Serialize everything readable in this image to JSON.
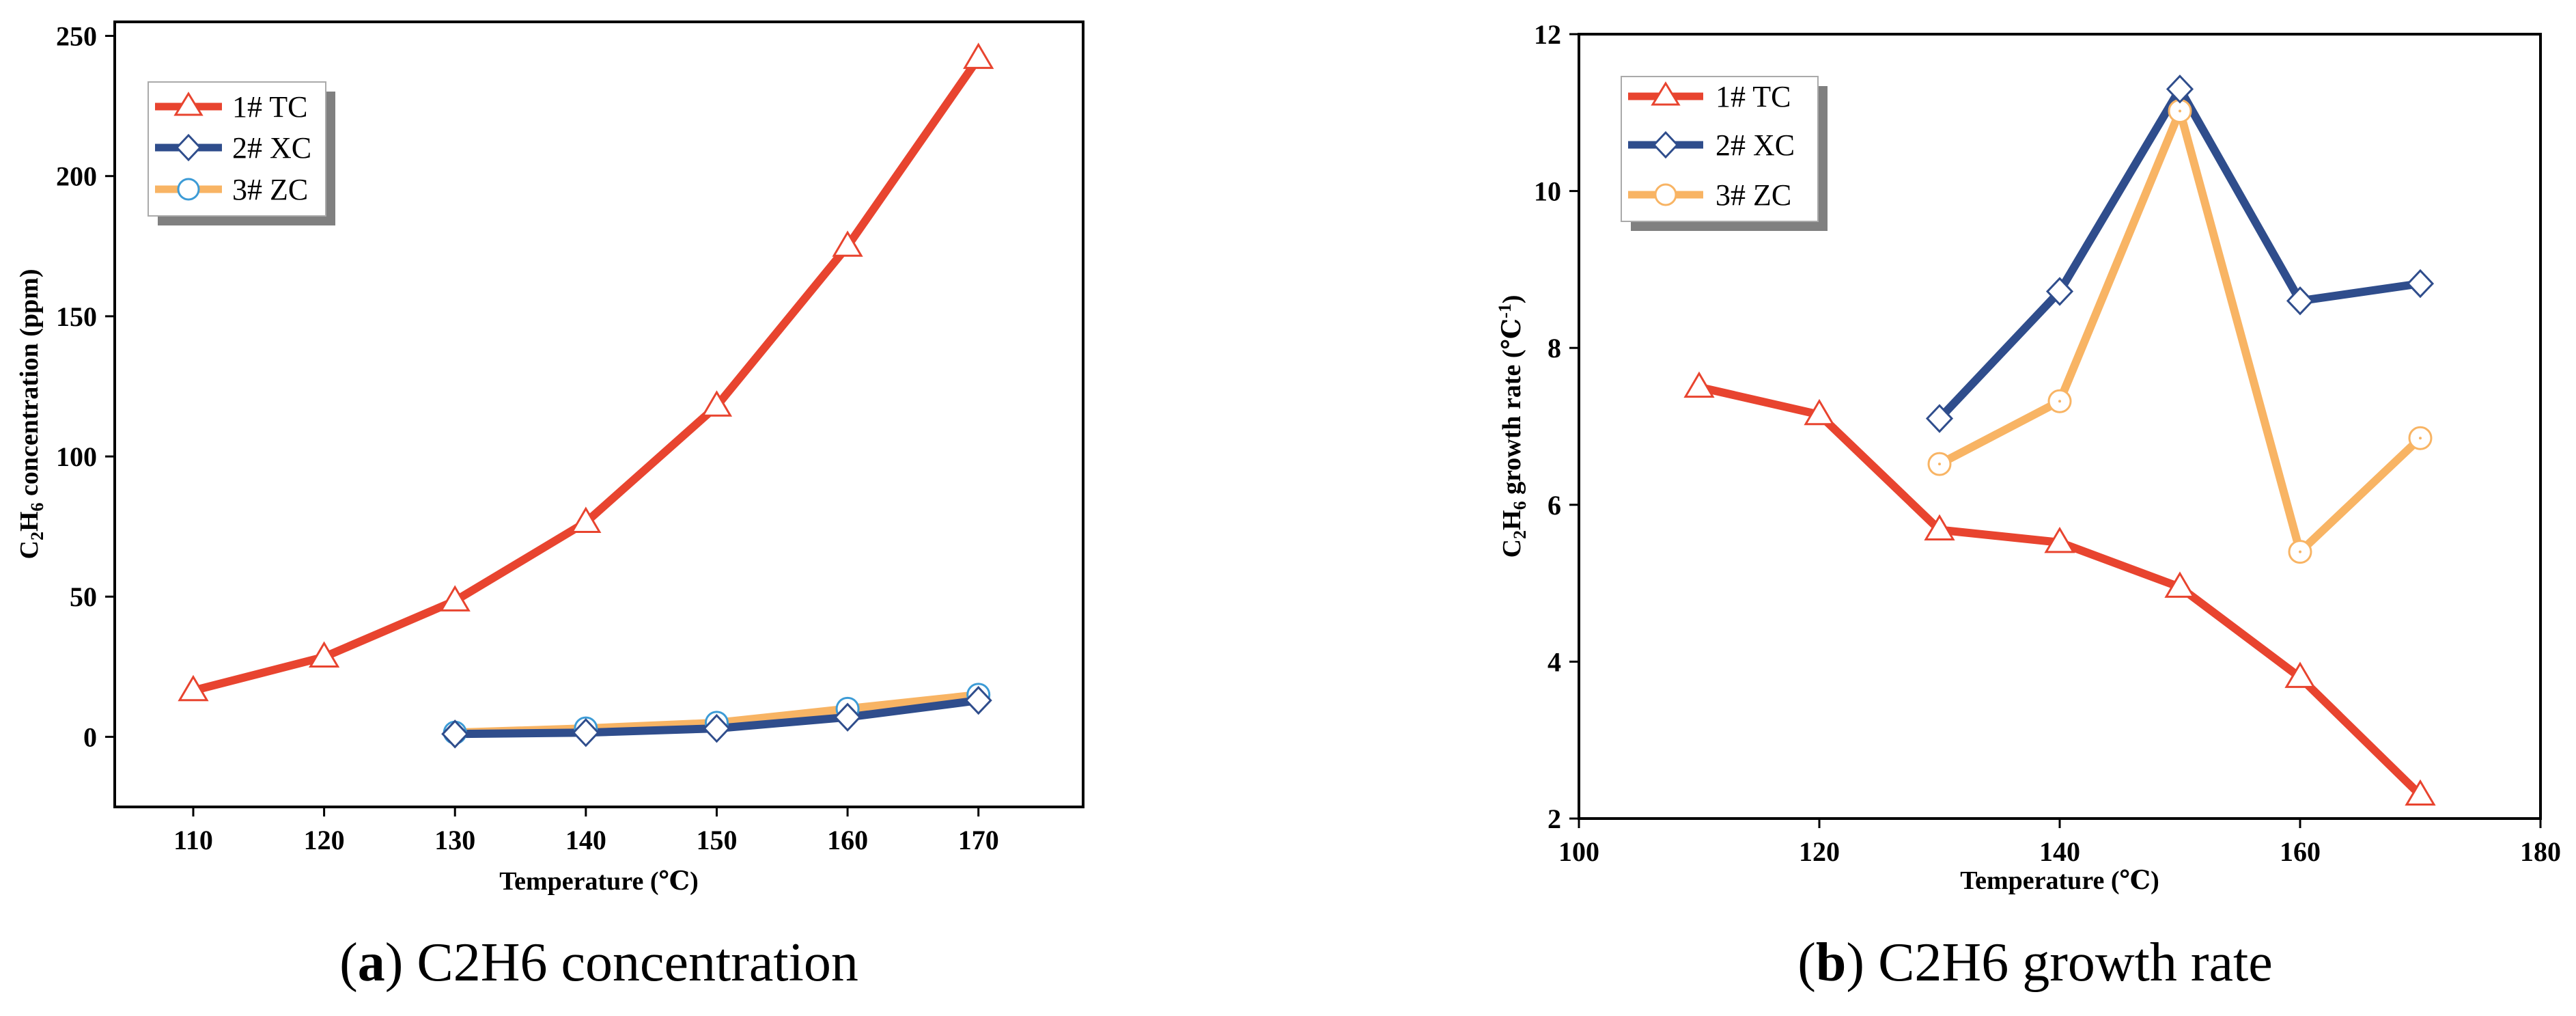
{
  "colors": {
    "tc": "#e8442f",
    "xc": "#2f4d8c",
    "zc": "#f8b464",
    "zc_marker": "#3c9bd6",
    "axis": "#000000",
    "legend_shadow": "#808080"
  },
  "chart_data": [
    {
      "type": "line",
      "title": "",
      "xlabel_pre": "Temperature (",
      "xlabel_unit": "℃",
      "xlabel_post": ")",
      "ylabel_c": "C",
      "ylabel_c_sub": "2",
      "ylabel_h": "H",
      "ylabel_h_sub": "6",
      "ylabel_rest": " concentration (ppm)",
      "xlim": [
        104,
        178
      ],
      "ylim": [
        -25,
        255
      ],
      "xticks": [
        110,
        120,
        130,
        140,
        150,
        160,
        170
      ],
      "xtick_labels": [
        "110",
        "120",
        "130",
        "140",
        "150",
        "160",
        "170"
      ],
      "yticks": [
        0,
        50,
        100,
        150,
        200,
        250
      ],
      "ytick_labels": [
        "0",
        "50",
        "100",
        "150",
        "200",
        "250"
      ],
      "legend_position": "top-left",
      "series": [
        {
          "name": "1# TC",
          "key": "tc",
          "marker": "triangle",
          "x": [
            110,
            120,
            130,
            140,
            150,
            160,
            170
          ],
          "values": [
            16.5,
            28.5,
            48.5,
            76.5,
            118,
            175,
            242
          ]
        },
        {
          "name": "2# XC",
          "key": "xc",
          "marker": "diamond",
          "x": [
            130,
            140,
            150,
            160,
            170
          ],
          "values": [
            1,
            1.5,
            3,
            7,
            13
          ]
        },
        {
          "name": "3# ZC",
          "key": "zc",
          "marker": "circle",
          "x": [
            130,
            140,
            150,
            160,
            170
          ],
          "values": [
            1.5,
            3,
            5,
            10,
            15
          ]
        }
      ],
      "caption_letter": "a",
      "caption_text": "C2H6 concentration"
    },
    {
      "type": "line",
      "title": "",
      "xlabel_pre": "Temperature (",
      "xlabel_unit": "℃",
      "xlabel_post": ")",
      "ylabel_c": "C",
      "ylabel_c_sub": "2",
      "ylabel_h": "H",
      "ylabel_h_sub": "6",
      "ylabel_rest": " growth rate (℃",
      "ylabel_sup": "-1",
      "ylabel_close": ")",
      "xlim": [
        100,
        180
      ],
      "ylim": [
        2,
        12
      ],
      "xticks": [
        100,
        120,
        140,
        160,
        180
      ],
      "xtick_labels": [
        "100",
        "120",
        "140",
        "160",
        "180"
      ],
      "yticks": [
        2,
        4,
        6,
        8,
        10,
        12
      ],
      "ytick_labels": [
        "2",
        "4",
        "6",
        "8",
        "10",
        "12"
      ],
      "legend_position": "top-left",
      "series": [
        {
          "name": "1# TC",
          "key": "tc",
          "marker": "triangle",
          "x": [
            110,
            120,
            130,
            140,
            150,
            160,
            170
          ],
          "values": [
            7.5,
            7.15,
            5.68,
            5.52,
            4.95,
            3.8,
            2.3
          ]
        },
        {
          "name": "2# XC",
          "key": "xc",
          "marker": "diamond",
          "x": [
            130,
            140,
            150,
            160,
            170
          ],
          "values": [
            7.1,
            8.72,
            11.3,
            8.6,
            8.82
          ]
        },
        {
          "name": "3# ZC",
          "key": "zc",
          "marker": "circle",
          "x": [
            130,
            140,
            150,
            160,
            170
          ],
          "values": [
            6.52,
            7.32,
            11.02,
            5.4,
            6.85
          ]
        }
      ],
      "caption_letter": "b",
      "caption_text": "C2H6 growth rate"
    }
  ]
}
